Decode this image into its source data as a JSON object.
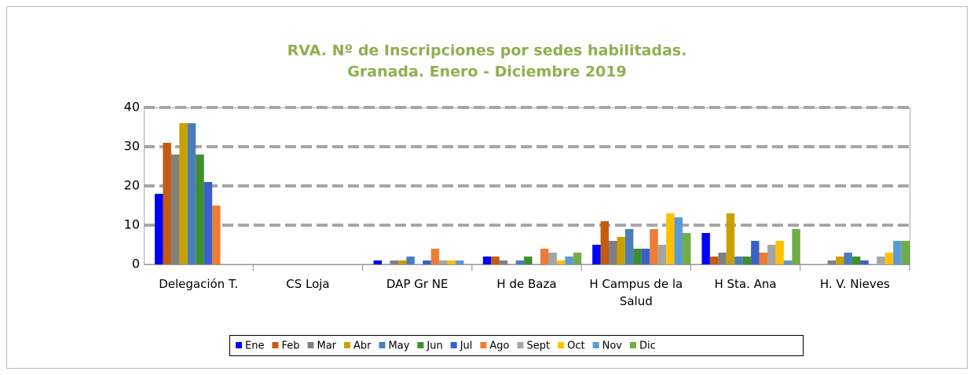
{
  "chart_data": {
    "type": "bar",
    "title": "RVA. Nº de Inscripciones por sedes habilitadas.",
    "subtitle": "Granada. Enero - Diciembre 2019",
    "categories": [
      "Delegación T.",
      "CS Loja",
      "DAP Gr NE",
      "H de Baza",
      "H Campus de la Salud",
      "H Sta. Ana",
      "H. V. Nieves"
    ],
    "series": [
      {
        "name": "Ene",
        "color": "#0000ff",
        "values": [
          18,
          0,
          1,
          2,
          5,
          8,
          0
        ]
      },
      {
        "name": "Feb",
        "color": "#c55a11",
        "values": [
          31,
          0,
          0,
          2,
          11,
          2,
          0
        ]
      },
      {
        "name": "Mar",
        "color": "#808080",
        "values": [
          28,
          0,
          1,
          1,
          6,
          3,
          1
        ]
      },
      {
        "name": "Abr",
        "color": "#c9a000",
        "values": [
          36,
          0,
          1,
          0,
          7,
          13,
          2
        ]
      },
      {
        "name": "May",
        "color": "#4a7ebb",
        "values": [
          36,
          0,
          2,
          1,
          9,
          2,
          3
        ]
      },
      {
        "name": "Jun",
        "color": "#3f8f2f",
        "values": [
          28,
          0,
          0,
          2,
          4,
          2,
          2
        ]
      },
      {
        "name": "Jul",
        "color": "#3a5fcd",
        "values": [
          21,
          0,
          1,
          0,
          4,
          6,
          1
        ]
      },
      {
        "name": "Ago",
        "color": "#ed7d31",
        "values": [
          15,
          0,
          4,
          4,
          9,
          3,
          0
        ]
      },
      {
        "name": "Sept",
        "color": "#a5a5a5",
        "values": [
          0,
          0,
          1,
          3,
          5,
          5,
          2
        ]
      },
      {
        "name": "Oct",
        "color": "#ffc000",
        "values": [
          0,
          0,
          1,
          1,
          13,
          6,
          3
        ]
      },
      {
        "name": "Nov",
        "color": "#5b9bd5",
        "values": [
          0,
          0,
          1,
          2,
          12,
          1,
          6
        ]
      },
      {
        "name": "Dic",
        "color": "#70ad47",
        "values": [
          0,
          0,
          0,
          3,
          8,
          9,
          6
        ]
      }
    ],
    "ylim": [
      0,
      40
    ],
    "yticks": [
      0,
      10,
      20,
      30,
      40
    ],
    "grid": true,
    "legend": "bottom"
  }
}
